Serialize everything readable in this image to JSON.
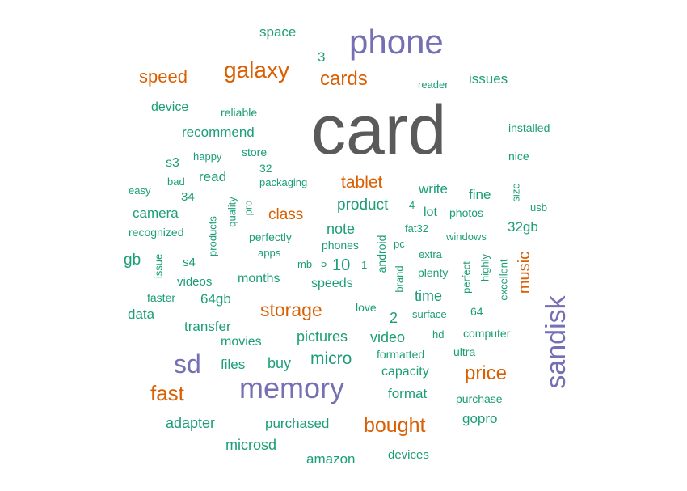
{
  "colors": {
    "low": "#1b9e77",
    "mid": "#d95f02",
    "high": "#7570b3",
    "top": "#5a5a5a"
  },
  "words": [
    "card",
    "phone",
    "memory",
    "sandisk",
    "sd",
    "galaxy",
    "cards",
    "speed",
    "tablet",
    "class",
    "storage",
    "fast",
    "price",
    "bought",
    "music",
    "space",
    "3",
    "reader",
    "issues",
    "device",
    "reliable",
    "installed",
    "recommend",
    "nice",
    "store",
    "happy",
    "s3",
    "bad",
    "packaging",
    "32",
    "read",
    "easy",
    "34",
    "write",
    "fine",
    "size",
    "product",
    "4",
    "usb",
    "camera",
    "quality",
    "pro",
    "lot",
    "photos",
    "32gb",
    "recognized",
    "products",
    "note",
    "fat32",
    "windows",
    "perfectly",
    "android",
    "gb",
    "apps",
    "phones",
    "pc",
    "extra",
    "issue",
    "s4",
    "mb",
    "5",
    "10",
    "1",
    "brand",
    "plenty",
    "perfect",
    "highly",
    "excellent",
    "videos",
    "months",
    "speeds",
    "faster",
    "64gb",
    "love",
    "time",
    "data",
    "2",
    "surface",
    "64",
    "transfer",
    "pictures",
    "video",
    "hd",
    "computer",
    "movies",
    "micro",
    "formatted",
    "ultra",
    "files",
    "buy",
    "capacity",
    "format",
    "purchase",
    "adapter",
    "purchased",
    "gopro",
    "microsd",
    "amazon",
    "devices"
  ]
}
